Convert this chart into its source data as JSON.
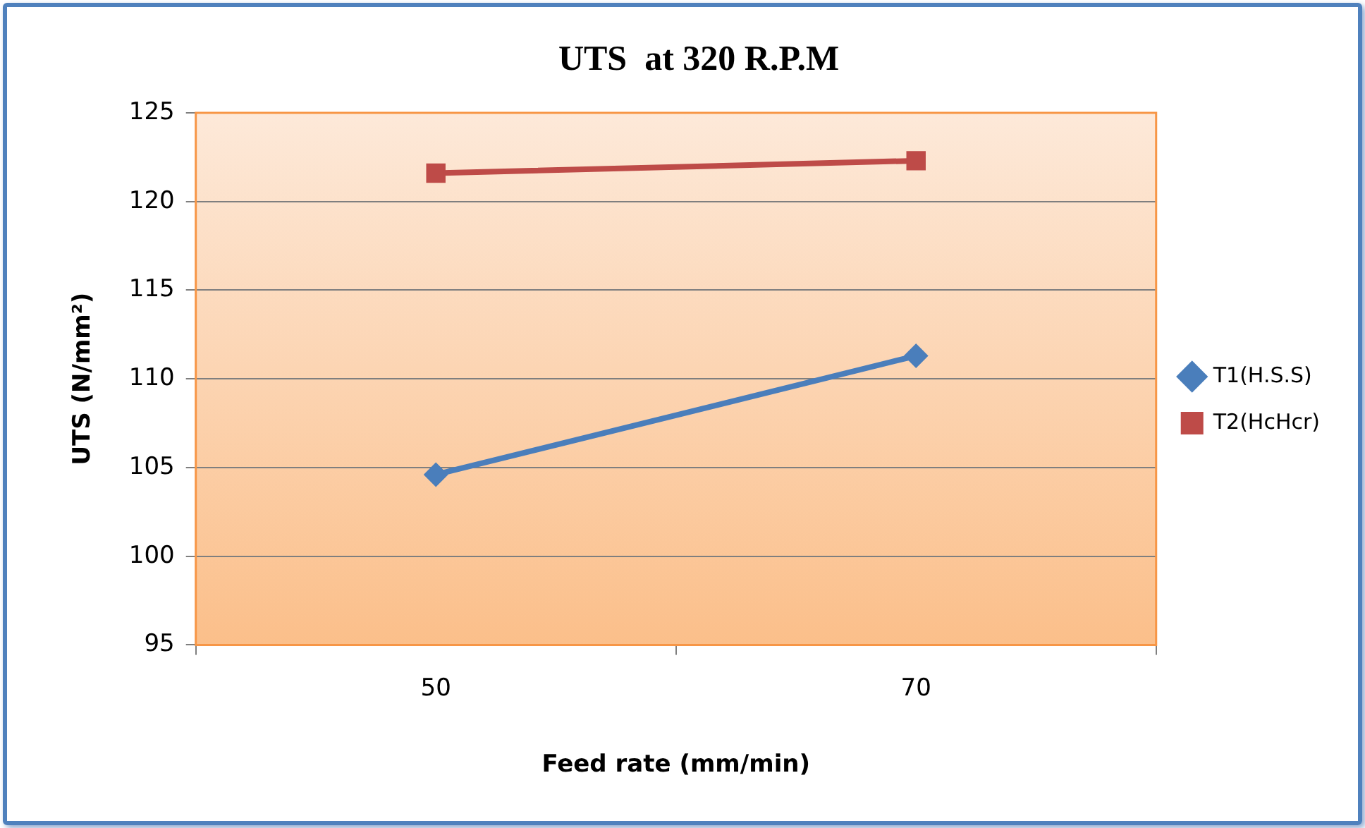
{
  "chart_data": {
    "type": "line",
    "title": "UTS  at 320 R.P.M",
    "xlabel": "Feed rate (mm/min)",
    "ylabel": "UTS (N/mm²)",
    "categories": [
      "50",
      "70"
    ],
    "series": [
      {
        "name": "T1(H.S.S)",
        "color": "#4a7ebb",
        "values": [
          104.6,
          111.3
        ],
        "marker": "diamond"
      },
      {
        "name": "T2(HcHcr)",
        "color": "#be4b48",
        "values": [
          121.6,
          122.3
        ],
        "marker": "square"
      }
    ],
    "ylim": [
      95,
      125
    ],
    "yticks": [
      95,
      100,
      105,
      110,
      115,
      120,
      125
    ],
    "grid": "y",
    "legend": "right",
    "line_style": "solid"
  }
}
